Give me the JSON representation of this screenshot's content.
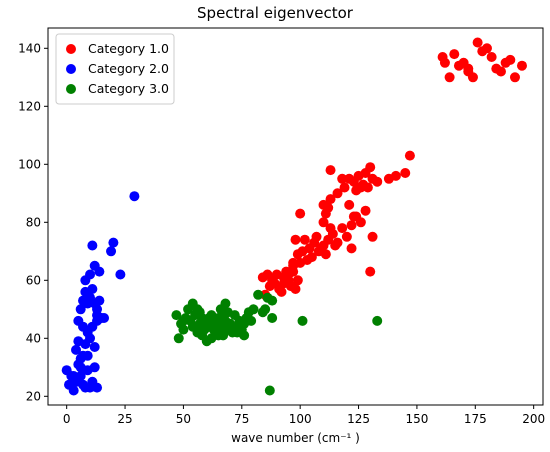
{
  "chart_data": {
    "type": "scatter",
    "title": "Spectral eigenvector",
    "xlabel": "wave number (cm⁻¹ )",
    "ylabel": "",
    "xlim": [
      -8,
      204
    ],
    "ylim": [
      17,
      147
    ],
    "xticks": [
      0,
      25,
      50,
      75,
      100,
      125,
      150,
      175,
      200
    ],
    "yticks": [
      20,
      40,
      60,
      80,
      100,
      120,
      140
    ],
    "grid": false,
    "legend_position": "top-left",
    "series": [
      {
        "name": "Category 1.0",
        "color": "#ff0000",
        "points": [
          [
            85,
            55
          ],
          [
            87,
            58
          ],
          [
            88,
            60
          ],
          [
            90,
            62
          ],
          [
            92,
            56
          ],
          [
            95,
            60
          ],
          [
            97,
            63
          ],
          [
            99,
            60
          ],
          [
            86,
            62
          ],
          [
            89,
            59
          ],
          [
            93,
            61
          ],
          [
            96,
            58
          ],
          [
            98,
            57
          ],
          [
            84,
            61
          ],
          [
            91,
            57
          ],
          [
            94,
            63
          ],
          [
            97,
            66
          ],
          [
            99,
            69
          ],
          [
            101,
            70
          ],
          [
            102,
            74
          ],
          [
            104,
            71
          ],
          [
            106,
            73
          ],
          [
            108,
            70
          ],
          [
            110,
            72
          ],
          [
            112,
            74
          ],
          [
            114,
            76
          ],
          [
            116,
            73
          ],
          [
            118,
            78
          ],
          [
            120,
            75
          ],
          [
            122,
            79
          ],
          [
            124,
            82
          ],
          [
            126,
            80
          ],
          [
            105,
            68
          ],
          [
            107,
            75
          ],
          [
            109,
            71
          ],
          [
            111,
            69
          ],
          [
            113,
            78
          ],
          [
            115,
            72
          ],
          [
            103,
            67
          ],
          [
            100,
            66
          ],
          [
            110,
            80
          ],
          [
            111,
            83
          ],
          [
            112,
            85
          ],
          [
            113,
            88
          ],
          [
            116,
            90
          ],
          [
            119,
            92
          ],
          [
            121,
            95
          ],
          [
            123,
            94
          ],
          [
            125,
            96
          ],
          [
            127,
            93
          ],
          [
            129,
            92
          ],
          [
            131,
            95
          ],
          [
            133,
            94
          ],
          [
            130,
            99
          ],
          [
            128,
            97
          ],
          [
            126,
            92
          ],
          [
            124,
            91
          ],
          [
            118,
            95
          ],
          [
            113,
            98
          ],
          [
            110,
            86
          ],
          [
            121,
            86
          ],
          [
            130,
            63
          ],
          [
            131,
            75
          ],
          [
            128,
            84
          ],
          [
            122,
            71
          ],
          [
            98,
            74
          ],
          [
            100,
            83
          ],
          [
            97,
            65
          ],
          [
            95,
            62
          ],
          [
            93,
            59
          ],
          [
            141,
            96
          ],
          [
            145,
            97
          ],
          [
            147,
            103
          ],
          [
            138,
            95
          ],
          [
            123,
            82
          ],
          [
            161,
            137
          ],
          [
            162,
            135
          ],
          [
            164,
            130
          ],
          [
            166,
            138
          ],
          [
            168,
            134
          ],
          [
            170,
            135
          ],
          [
            172,
            132
          ],
          [
            174,
            130
          ],
          [
            176,
            142
          ],
          [
            178,
            139
          ],
          [
            180,
            140
          ],
          [
            182,
            137
          ],
          [
            184,
            133
          ],
          [
            186,
            132
          ],
          [
            188,
            135
          ],
          [
            190,
            136
          ],
          [
            192,
            130
          ],
          [
            195,
            134
          ],
          [
            172,
            133
          ]
        ]
      },
      {
        "name": "Category 2.0",
        "color": "#0000ff",
        "points": [
          [
            0,
            29
          ],
          [
            1,
            24
          ],
          [
            2,
            27
          ],
          [
            3,
            22
          ],
          [
            4,
            25
          ],
          [
            5,
            31
          ],
          [
            6,
            27
          ],
          [
            7,
            24
          ],
          [
            8,
            23
          ],
          [
            9,
            29
          ],
          [
            10,
            23
          ],
          [
            11,
            25
          ],
          [
            12,
            30
          ],
          [
            13,
            23
          ],
          [
            4,
            36
          ],
          [
            5,
            39
          ],
          [
            6,
            33
          ],
          [
            7,
            34
          ],
          [
            8,
            38
          ],
          [
            9,
            42
          ],
          [
            10,
            40
          ],
          [
            11,
            44
          ],
          [
            12,
            37
          ],
          [
            13,
            48
          ],
          [
            5,
            46
          ],
          [
            6,
            50
          ],
          [
            7,
            53
          ],
          [
            8,
            56
          ],
          [
            9,
            52
          ],
          [
            10,
            54
          ],
          [
            11,
            57
          ],
          [
            12,
            52
          ],
          [
            13,
            50
          ],
          [
            14,
            53
          ],
          [
            15,
            47
          ],
          [
            8,
            60
          ],
          [
            10,
            62
          ],
          [
            12,
            65
          ],
          [
            14,
            63
          ],
          [
            11,
            72
          ],
          [
            16,
            47
          ],
          [
            19,
            70
          ],
          [
            20,
            73
          ],
          [
            23,
            62
          ],
          [
            29,
            89
          ],
          [
            7,
            44
          ],
          [
            6,
            30
          ],
          [
            9,
            34
          ],
          [
            3,
            27
          ],
          [
            13,
            46
          ]
        ]
      },
      {
        "name": "Category 3.0",
        "color": "#008000",
        "points": [
          [
            47,
            48
          ],
          [
            49,
            45
          ],
          [
            50,
            43
          ],
          [
            51,
            47
          ],
          [
            52,
            50
          ],
          [
            53,
            46
          ],
          [
            54,
            44
          ],
          [
            55,
            48
          ],
          [
            56,
            42
          ],
          [
            57,
            45
          ],
          [
            58,
            47
          ],
          [
            59,
            43
          ],
          [
            60,
            46
          ],
          [
            61,
            44
          ],
          [
            62,
            48
          ],
          [
            63,
            45
          ],
          [
            64,
            42
          ],
          [
            65,
            47
          ],
          [
            66,
            44
          ],
          [
            67,
            41
          ],
          [
            68,
            46
          ],
          [
            69,
            43
          ],
          [
            70,
            45
          ],
          [
            71,
            42
          ],
          [
            72,
            48
          ],
          [
            73,
            44
          ],
          [
            74,
            46
          ],
          [
            75,
            43
          ],
          [
            76,
            45
          ],
          [
            77,
            47
          ],
          [
            78,
            49
          ],
          [
            79,
            46
          ],
          [
            80,
            50
          ],
          [
            82,
            55
          ],
          [
            84,
            49
          ],
          [
            86,
            54
          ],
          [
            88,
            53
          ],
          [
            54,
            52
          ],
          [
            56,
            50
          ],
          [
            58,
            41
          ],
          [
            60,
            39
          ],
          [
            62,
            40
          ],
          [
            64,
            45
          ],
          [
            66,
            50
          ],
          [
            68,
            52
          ],
          [
            48,
            40
          ],
          [
            50,
            46
          ],
          [
            57,
            49
          ],
          [
            61,
            47
          ],
          [
            63,
            43
          ],
          [
            65,
            41
          ],
          [
            67,
            48
          ],
          [
            69,
            49
          ],
          [
            71,
            44
          ],
          [
            73,
            42
          ],
          [
            76,
            41
          ],
          [
            85,
            50
          ],
          [
            88,
            47
          ],
          [
            101,
            46
          ],
          [
            133,
            46
          ],
          [
            87,
            22
          ]
        ]
      }
    ]
  }
}
